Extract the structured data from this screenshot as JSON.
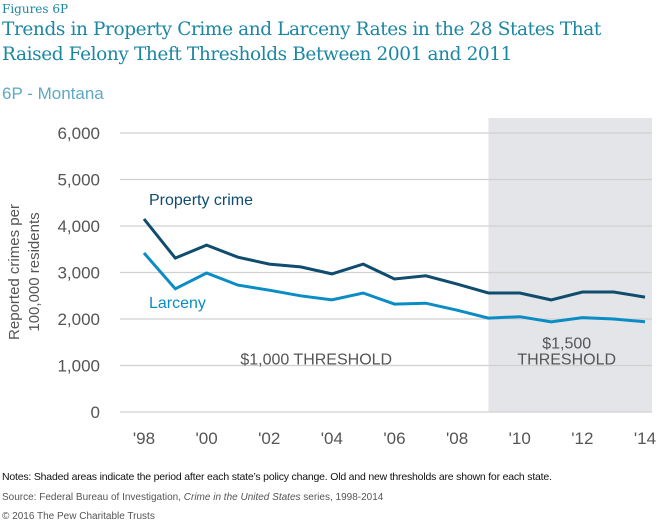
{
  "figure_label": "Figures 6P",
  "title": "Trends in Property Crime and Larceny Rates in the 28 States That Raised Felony Theft Thresholds Between 2001 and 2011",
  "subtitle": "6P - Montana",
  "notes": "Notes: Shaded areas indicate the period after each state’s policy change. Old and new thresholds are shown for each state.",
  "source_prefix": "Source: Federal Bureau of Investigation, ",
  "source_italic": "Crime in the United States",
  "source_suffix": " series, 1998-2014",
  "copyright": "© 2016 The Pew Charitable Trusts",
  "colors": {
    "property": "#0f4c6e",
    "larceny": "#0a8cc4",
    "shade": "#e4e5e8",
    "grid": "#d0d0d0",
    "axis_text": "#555555"
  },
  "chart_data": {
    "type": "line",
    "title": "Trends in Property Crime and Larceny Rates in the 28 States That Raised Felony Theft Thresholds Between 2001 and 2011",
    "subtitle": "6P - Montana",
    "xlabel": "",
    "ylabel": "Reported crimes per 100,000 residents",
    "x": [
      1998,
      1999,
      2000,
      2001,
      2002,
      2003,
      2004,
      2005,
      2006,
      2007,
      2008,
      2009,
      2010,
      2011,
      2012,
      2013,
      2014
    ],
    "xlim": [
      1998,
      2014
    ],
    "xticks": [
      1998,
      2000,
      2002,
      2004,
      2006,
      2008,
      2010,
      2012,
      2014
    ],
    "xtick_labels": [
      "'98",
      "'00",
      "'02",
      "'04",
      "'06",
      "'08",
      "'10",
      "'12",
      "'14"
    ],
    "ylim": [
      0,
      6000
    ],
    "yticks": [
      0,
      1000,
      2000,
      3000,
      4000,
      5000,
      6000
    ],
    "ytick_labels": [
      "0",
      "1,000",
      "2,000",
      "3,000",
      "4,000",
      "5,000",
      "6,000"
    ],
    "grid": true,
    "series": [
      {
        "name": "Property crime",
        "label_pos": "above-left",
        "values": [
          4150,
          3310,
          3590,
          3330,
          3180,
          3120,
          2970,
          3180,
          2860,
          2930,
          2750,
          2560,
          2560,
          2410,
          2580,
          2580,
          2470
        ]
      },
      {
        "name": "Larceny",
        "label_pos": "below-left",
        "values": [
          3420,
          2650,
          2990,
          2730,
          2620,
          2500,
          2410,
          2560,
          2320,
          2340,
          2190,
          2020,
          2050,
          1940,
          2030,
          2000,
          1940
        ]
      }
    ],
    "shaded_region": {
      "from": 2009,
      "to": 2014
    },
    "annotations": [
      {
        "text": "$1,000 THRESHOLD",
        "x": 2003.5,
        "y": 1150
      },
      {
        "text": "$1,500",
        "x": 2011.5,
        "y": 1500
      },
      {
        "text": "THRESHOLD",
        "x": 2011.5,
        "y": 1150
      }
    ]
  }
}
